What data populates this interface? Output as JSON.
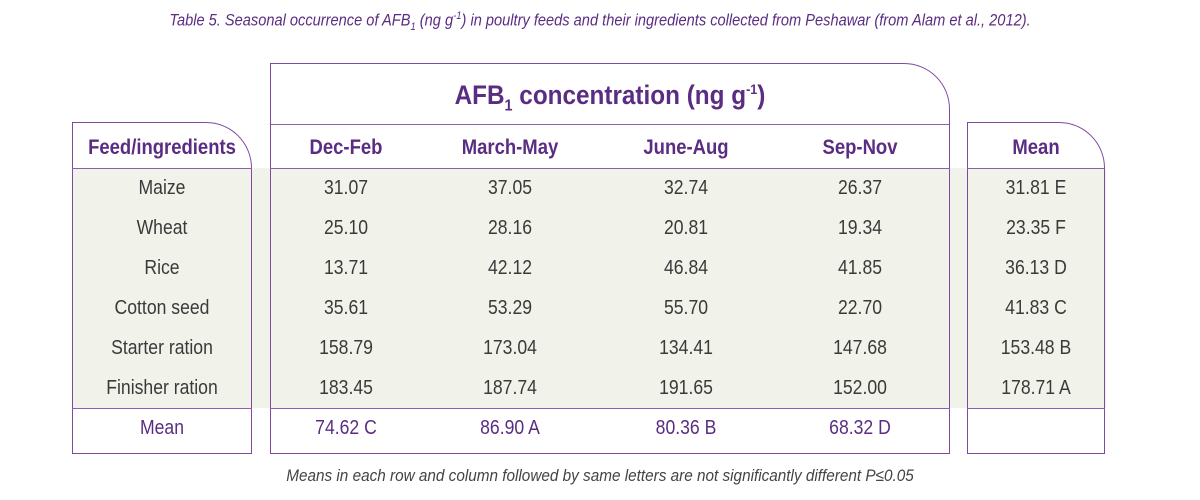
{
  "caption": {
    "prefix": "Table 5. Seasonal occurrence of AFB",
    "sub": "1",
    "mid": " (ng g",
    "sup": "-1",
    "suffix": ") in poultry feeds and their ingredients collected from Peshawar (from Alam et al., 2012)."
  },
  "group_header": {
    "prefix": "AFB",
    "sub": "1",
    "mid": " concentration (ng g",
    "sup": "-1",
    "suffix": ")"
  },
  "headers": {
    "feed": "Feed/ingredients",
    "seasons": [
      "Dec-Feb",
      "March-May",
      "June-Aug",
      "Sep-Nov"
    ],
    "mean": "Mean"
  },
  "rows": [
    {
      "name": "Maize",
      "values": [
        "31.07",
        "37.05",
        "32.74",
        "26.37"
      ],
      "mean": "31.81 E"
    },
    {
      "name": "Wheat",
      "values": [
        "25.10",
        "28.16",
        "20.81",
        "19.34"
      ],
      "mean": "23.35 F"
    },
    {
      "name": "Rice",
      "values": [
        "13.71",
        "42.12",
        "46.84",
        "41.85"
      ],
      "mean": "36.13 D"
    },
    {
      "name": "Cotton seed",
      "values": [
        "35.61",
        "53.29",
        "55.70",
        "22.70"
      ],
      "mean": "41.83 C"
    },
    {
      "name": "Starter ration",
      "values": [
        "158.79",
        "173.04",
        "134.41",
        "147.68"
      ],
      "mean": "153.48 B"
    },
    {
      "name": "Finisher ration",
      "values": [
        "183.45",
        "187.74",
        "191.65",
        "152.00"
      ],
      "mean": "178.71 A"
    }
  ],
  "mean_row": {
    "label": "Mean",
    "values": [
      "74.62 C",
      "86.90 A",
      "80.36 B",
      "68.32 D"
    ],
    "mean": ""
  },
  "footnote": "Means in each row and column followed by same letters are not significantly different P≤0.05",
  "colors": {
    "accent": "#5a2d82",
    "border": "#7d4aa0",
    "band": "#f1f2ea",
    "text": "#3a3a3a"
  }
}
